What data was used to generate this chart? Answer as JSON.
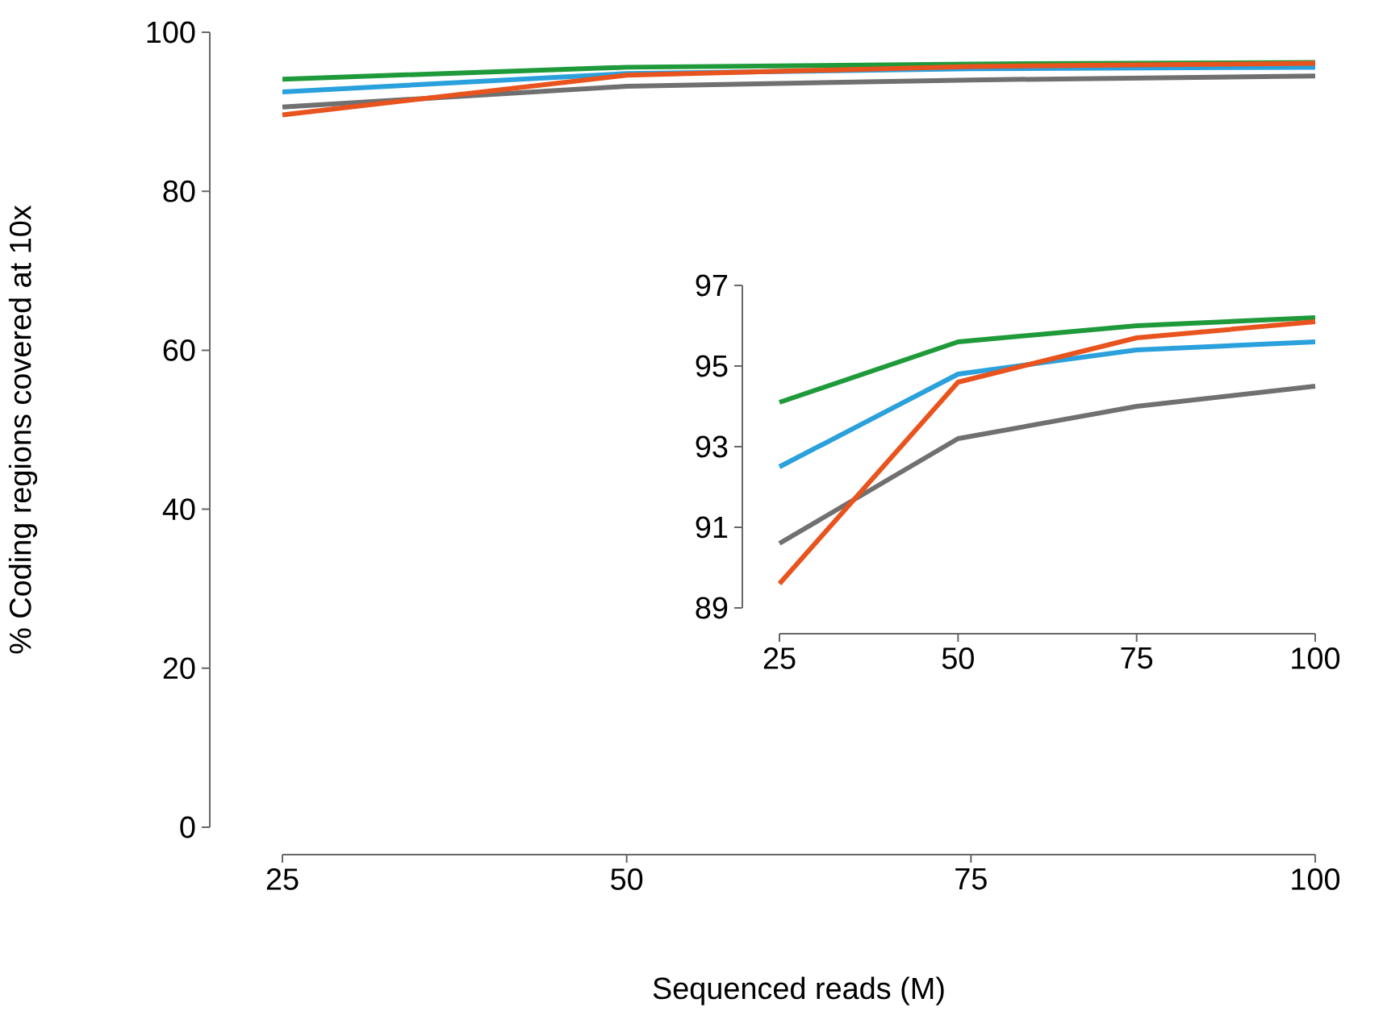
{
  "chart_data": [
    {
      "type": "line",
      "xlabel": "Sequenced reads (M)",
      "ylabel": "% Coding regions covered at 10x",
      "x": [
        25,
        50,
        75,
        100
      ],
      "xlim": [
        25,
        100
      ],
      "ylim": [
        0,
        100
      ],
      "xticks": [
        25,
        50,
        75,
        100
      ],
      "yticks": [
        0,
        20,
        40,
        60,
        80,
        100
      ],
      "marker": "none",
      "line_style": "solid",
      "series": [
        {
          "color": "#707070",
          "values": [
            90.6,
            93.2,
            94.0,
            94.5
          ]
        },
        {
          "color": "#2aa0dc",
          "values": [
            92.5,
            94.8,
            95.4,
            95.6
          ]
        },
        {
          "color": "#1f9a3a",
          "values": [
            94.1,
            95.6,
            96.0,
            96.2
          ]
        },
        {
          "color": "#e8531e",
          "values": [
            89.6,
            94.6,
            95.7,
            96.1
          ]
        }
      ]
    },
    {
      "type": "line",
      "x": [
        25,
        50,
        75,
        100
      ],
      "xlim": [
        25,
        100
      ],
      "ylim": [
        89,
        97
      ],
      "xticks": [
        25,
        50,
        75,
        100
      ],
      "yticks": [
        89,
        91,
        93,
        95,
        97
      ],
      "marker": "none",
      "line_style": "solid",
      "series": [
        {
          "color": "#707070",
          "values": [
            90.6,
            93.2,
            94.0,
            94.5
          ]
        },
        {
          "color": "#2aa0dc",
          "values": [
            92.5,
            94.8,
            95.4,
            95.6
          ]
        },
        {
          "color": "#1f9a3a",
          "values": [
            94.1,
            95.6,
            96.0,
            96.2
          ]
        },
        {
          "color": "#e8531e",
          "values": [
            89.6,
            94.6,
            95.7,
            96.1
          ]
        }
      ]
    }
  ]
}
